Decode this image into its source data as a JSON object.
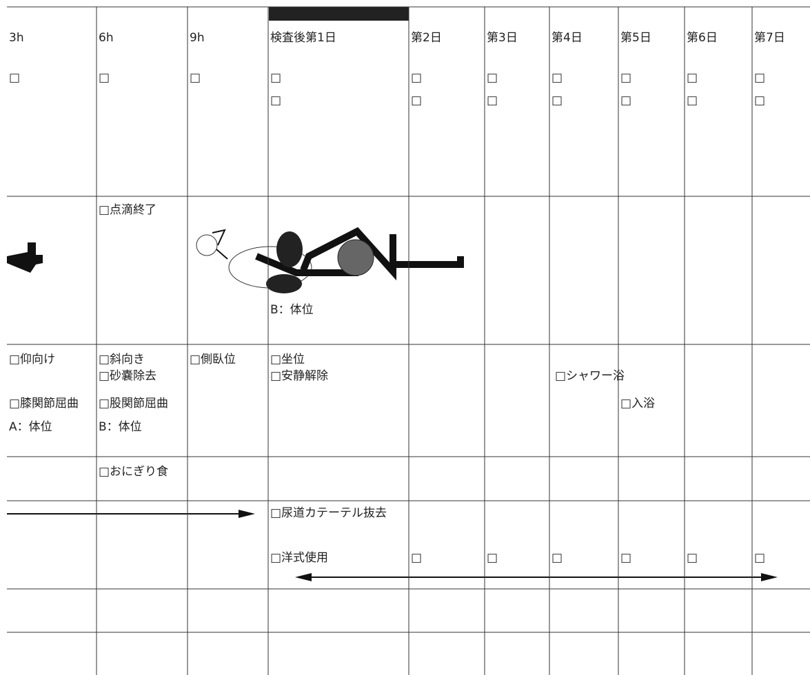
{
  "header": [
    "3h",
    "6h",
    "9h",
    "検査後第1日",
    "第2日",
    "第3日",
    "第4日",
    "第5日",
    "第6日",
    "第7日"
  ],
  "rows": [
    [
      [
        "□"
      ],
      [
        "□"
      ],
      [
        "□"
      ],
      [
        "□",
        "□"
      ],
      [
        "□",
        "□"
      ],
      [
        "□",
        "□"
      ],
      [
        "□",
        "□"
      ],
      [
        "□",
        "□"
      ],
      [
        "□",
        "□"
      ],
      [
        "□",
        "□"
      ]
    ],
    [
      [],
      [
        "□点滴終了"
      ],
      [],
      [
        "B：体位"
      ],
      [],
      [],
      [],
      [],
      [],
      []
    ],
    [
      [
        "□仰向け",
        "□膝関節屈曲",
        "A：体位"
      ],
      [
        "□斜向き",
        "□砂嚢除去",
        "□股関節屈曲",
        "B：体位"
      ],
      [
        "□側臥位"
      ],
      [
        "□坐位",
        "□安静解除"
      ],
      [],
      [],
      [
        "□シャワー浴"
      ],
      [
        "□入浴"
      ],
      [],
      []
    ],
    [
      [],
      [
        "□おにぎり食"
      ],
      [],
      [],
      [],
      [],
      [],
      [],
      [],
      []
    ],
    [
      [],
      [],
      [],
      [
        "□尿道カテーテル抜去",
        "□洋式使用"
      ],
      [
        "□"
      ],
      [
        "□"
      ],
      [
        "□"
      ],
      [
        "□"
      ],
      [
        "□"
      ],
      [
        "□"
      ]
    ]
  ]
}
